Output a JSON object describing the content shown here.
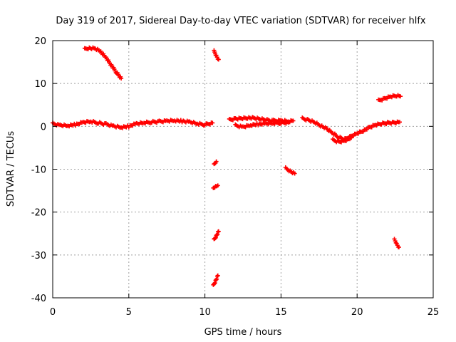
{
  "chart_data": {
    "type": "scatter",
    "title": "Day 319 of 2017, Sidereal Day-to-day VTEC variation (SDTVAR) for receiver hlfx",
    "xlabel": "GPS time / hours",
    "ylabel": "SDTVAR / TECUs",
    "xlim": [
      0,
      25
    ],
    "ylim": [
      -40,
      20
    ],
    "xticks": [
      0,
      5,
      10,
      15,
      20,
      25
    ],
    "yticks": [
      -40,
      -30,
      -20,
      -10,
      0,
      10,
      20
    ],
    "grid": true,
    "marker": "plus",
    "color": "#ff0000",
    "series": [
      {
        "name": "SDTVAR",
        "segments": [
          [
            [
              0.0,
              0.6
            ],
            [
              0.5,
              0.3
            ],
            [
              1.0,
              0.2
            ],
            [
              1.5,
              0.4
            ],
            [
              2.0,
              0.9
            ],
            [
              2.5,
              1.1
            ],
            [
              3.0,
              0.8
            ],
            [
              3.5,
              0.5
            ],
            [
              4.0,
              0.1
            ],
            [
              4.5,
              -0.2
            ],
            [
              5.0,
              0.0
            ],
            [
              5.5,
              0.6
            ],
            [
              6.0,
              0.8
            ],
            [
              6.5,
              1.0
            ],
            [
              7.0,
              1.1
            ],
            [
              7.5,
              1.3
            ],
            [
              8.0,
              1.4
            ],
            [
              8.5,
              1.2
            ],
            [
              9.0,
              1.0
            ],
            [
              9.5,
              0.6
            ],
            [
              10.0,
              0.4
            ],
            [
              10.5,
              0.8
            ]
          ],
          [
            [
              2.1,
              18.0
            ],
            [
              2.4,
              18.3
            ],
            [
              2.8,
              18.2
            ],
            [
              3.1,
              17.6
            ],
            [
              3.5,
              16.0
            ],
            [
              3.9,
              14.0
            ],
            [
              4.2,
              12.5
            ],
            [
              4.5,
              11.2
            ]
          ],
          [
            [
              10.6,
              17.5
            ],
            [
              10.75,
              16.5
            ],
            [
              10.9,
              15.6
            ]
          ],
          [
            [
              10.6,
              -9.0
            ],
            [
              10.75,
              -8.2
            ]
          ],
          [
            [
              10.55,
              -14.6
            ],
            [
              10.7,
              -14.0
            ],
            [
              10.85,
              -13.8
            ]
          ],
          [
            [
              10.6,
              -26.5
            ],
            [
              10.75,
              -25.5
            ],
            [
              10.9,
              -24.5
            ]
          ],
          [
            [
              10.55,
              -37.2
            ],
            [
              10.7,
              -36.0
            ],
            [
              10.85,
              -34.8
            ]
          ],
          [
            [
              11.6,
              1.5
            ],
            [
              12.0,
              1.8
            ],
            [
              12.4,
              1.9
            ],
            [
              12.8,
              2.0
            ],
            [
              13.2,
              1.9
            ],
            [
              13.6,
              1.7
            ],
            [
              14.0,
              1.5
            ],
            [
              14.5,
              1.3
            ],
            [
              15.0,
              1.4
            ],
            [
              15.5,
              1.2
            ],
            [
              15.8,
              1.3
            ]
          ],
          [
            [
              12.0,
              0.2
            ],
            [
              12.5,
              -0.1
            ],
            [
              13.0,
              0.3
            ],
            [
              13.5,
              0.5
            ],
            [
              14.0,
              0.6
            ],
            [
              14.5,
              0.7
            ],
            [
              15.0,
              0.8
            ],
            [
              15.5,
              0.9
            ]
          ],
          [
            [
              15.3,
              -9.8
            ],
            [
              15.6,
              -10.4
            ],
            [
              15.9,
              -11.0
            ]
          ],
          [
            [
              16.4,
              1.8
            ],
            [
              16.8,
              1.5
            ],
            [
              17.2,
              1.0
            ],
            [
              17.6,
              0.2
            ],
            [
              18.0,
              -0.6
            ],
            [
              18.4,
              -1.6
            ],
            [
              18.8,
              -2.6
            ],
            [
              19.2,
              -3.0
            ],
            [
              19.6,
              -2.3
            ],
            [
              20.0,
              -1.6
            ],
            [
              20.4,
              -1.0
            ],
            [
              20.8,
              -0.3
            ],
            [
              21.2,
              0.3
            ],
            [
              21.6,
              0.6
            ],
            [
              22.0,
              0.8
            ],
            [
              22.4,
              0.9
            ],
            [
              22.8,
              1.0
            ]
          ],
          [
            [
              18.4,
              -3.2
            ],
            [
              18.8,
              -3.6
            ],
            [
              19.2,
              -3.3
            ],
            [
              19.6,
              -2.7
            ]
          ],
          [
            [
              21.4,
              6.0
            ],
            [
              21.8,
              6.5
            ],
            [
              22.2,
              7.0
            ],
            [
              22.6,
              7.2
            ],
            [
              22.85,
              7.0
            ]
          ],
          [
            [
              22.45,
              -26.5
            ],
            [
              22.6,
              -27.4
            ],
            [
              22.75,
              -28.2
            ]
          ]
        ]
      }
    ]
  }
}
